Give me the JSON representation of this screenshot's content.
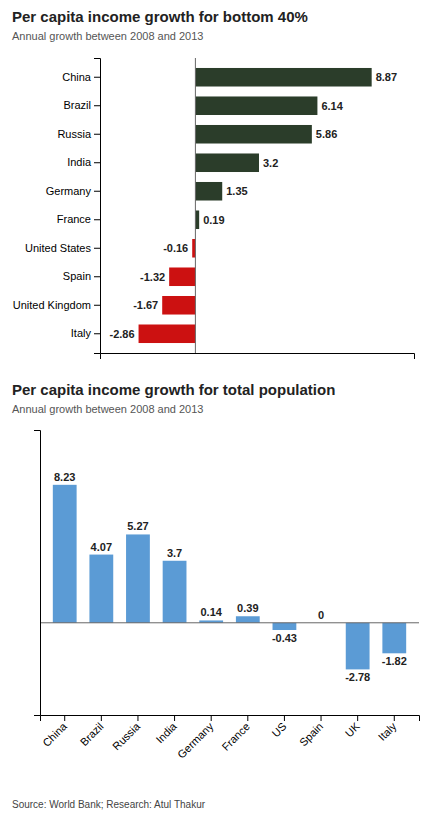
{
  "chart_data": [
    {
      "type": "bar",
      "title": "Per capita income growth for bottom 40%",
      "subtitle": "Annual growth between 2008 and 2013",
      "orientation": "horizontal",
      "categories": [
        "China",
        "Brazil",
        "Russia",
        "India",
        "Germany",
        "France",
        "United States",
        "Spain",
        "United Kingdom",
        "Italy"
      ],
      "values": [
        8.87,
        6.14,
        5.86,
        3.2,
        1.35,
        0.19,
        -0.16,
        -1.32,
        -1.67,
        -2.86
      ],
      "colors": [
        "#2b3d2a",
        "#2b3d2a",
        "#2b3d2a",
        "#2b3d2a",
        "#2b3d2a",
        "#2b3d2a",
        "#cc1111",
        "#cc1111",
        "#cc1111",
        "#cc1111"
      ],
      "xlim": [
        -4.8,
        11.0
      ],
      "data_labels": true,
      "tick_labels": "y"
    },
    {
      "type": "bar",
      "title": "Per capita income growth for total population",
      "subtitle": "Annual growth between 2008 and 2013",
      "categories": [
        "China",
        "Brazil",
        "Russia",
        "India",
        "Germany",
        "France",
        "US",
        "Spain",
        "UK",
        "Italy"
      ],
      "values": [
        8.23,
        4.07,
        5.27,
        3.7,
        0.14,
        0.39,
        -0.43,
        0.0,
        -2.78,
        -1.82
      ],
      "color": "#5b9bd5",
      "ylim": [
        -5.5,
        11.5
      ],
      "data_labels": true,
      "tick_labels": "x",
      "annotations": [
        "Source: World Bank; Research: Atul Thakur"
      ]
    }
  ]
}
